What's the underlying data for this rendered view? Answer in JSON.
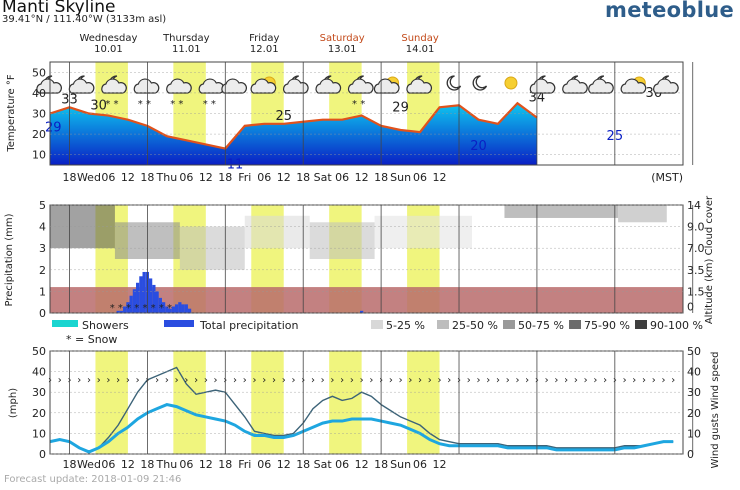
{
  "header": {
    "location": "Manti Skyline",
    "coordinates": "39.41°N / 111.40°W (3133m asl)",
    "brand": "meteoblue"
  },
  "days": [
    {
      "name": "Wednesday",
      "date": "10.01",
      "weekend": false
    },
    {
      "name": "Thursday",
      "date": "11.01",
      "weekend": false
    },
    {
      "name": "Friday",
      "date": "12.01",
      "weekend": false
    },
    {
      "name": "Saturday",
      "date": "13.01",
      "weekend": true
    },
    {
      "name": "Sunday",
      "date": "14.01",
      "weekend": true
    }
  ],
  "time_ticks": [
    "18",
    "Wed",
    "06",
    "12",
    "18",
    "Thu",
    "06",
    "12",
    "18",
    "Fri",
    "06",
    "12",
    "18",
    "Sat",
    "06",
    "12",
    "18",
    "Sun",
    "06",
    "12"
  ],
  "timezone": "(MST)",
  "colors": {
    "daylight": "#f0f57e",
    "temp_line": "#e0521c",
    "temp_fill_top": "#0ec8f0",
    "temp_fill_bottom": "#0a1fc4",
    "precip": "#2a4de0",
    "showers": "#1ad5d0",
    "snow_band": "#b86b6b",
    "wind_gust": "#3c6378",
    "wind_speed": "#1ea6e0"
  },
  "chart_data": [
    {
      "type": "area",
      "ylabel": "Temperature °F",
      "ylim": [
        5,
        55
      ],
      "yticks": [
        10,
        20,
        30,
        40,
        50
      ],
      "x_unit": "hours from Tuesday 18:00 (MST)",
      "x": [
        0,
        6,
        12,
        18,
        24,
        30,
        36,
        42,
        48,
        54,
        60,
        66,
        72,
        78,
        84,
        90,
        96,
        102,
        108,
        114,
        120,
        126,
        132,
        138,
        144,
        150
      ],
      "values": [
        30,
        33,
        30,
        29,
        27,
        24,
        19,
        17,
        15,
        13,
        24,
        25,
        25,
        26,
        27,
        27,
        29,
        24,
        22,
        21,
        33,
        34,
        27,
        25,
        35,
        28
      ],
      "labels": [
        {
          "x": 1,
          "value": "29",
          "kind": "cold"
        },
        {
          "x": 6,
          "value": "33",
          "kind": "warm"
        },
        {
          "x": 15,
          "value": "30",
          "kind": "warm"
        },
        {
          "x": 57,
          "value": "11",
          "kind": "cold"
        },
        {
          "x": 72,
          "value": "25",
          "kind": "warm"
        },
        {
          "x": 108,
          "value": "29",
          "kind": "warm"
        },
        {
          "x": 132,
          "value": "20",
          "kind": "cold"
        },
        {
          "x": 150,
          "value": "34",
          "kind": "warm"
        },
        {
          "x": 174,
          "value": "25",
          "kind": "cold"
        },
        {
          "x": 186,
          "value": "36",
          "kind": "warm"
        }
      ],
      "weather_icons": [
        {
          "x": 0,
          "icon": "cloud-moon-icon"
        },
        {
          "x": 10,
          "icon": "cloud-moon-icon"
        },
        {
          "x": 20,
          "icon": "moon-snow-icon"
        },
        {
          "x": 30,
          "icon": "snow-cloud-icon"
        },
        {
          "x": 40,
          "icon": "snow-cloud-icon"
        },
        {
          "x": 50,
          "icon": "snow-cloud-icon"
        },
        {
          "x": 57,
          "icon": "cloud-icon"
        },
        {
          "x": 66,
          "icon": "partly-cloudy-icon"
        },
        {
          "x": 76,
          "icon": "cloud-moon-icon"
        },
        {
          "x": 86,
          "icon": "cloud-moon-icon"
        },
        {
          "x": 96,
          "icon": "moon-snow-icon"
        },
        {
          "x": 104,
          "icon": "partly-cloudy-icon"
        },
        {
          "x": 114,
          "icon": "cloud-moon-icon"
        },
        {
          "x": 124,
          "icon": "moon-icon"
        },
        {
          "x": 132,
          "icon": "moon-icon"
        },
        {
          "x": 142,
          "icon": "sun-icon"
        },
        {
          "x": 152,
          "icon": "cloud-moon-icon"
        },
        {
          "x": 162,
          "icon": "cloud-moon-icon"
        },
        {
          "x": 170,
          "icon": "cloud-moon-icon"
        },
        {
          "x": 180,
          "icon": "partly-cloudy-icon"
        },
        {
          "x": 190,
          "icon": "cloud-moon-icon"
        }
      ]
    },
    {
      "type": "bar",
      "ylabel": "Precipitation (mm)",
      "ylim": [
        0,
        5
      ],
      "yticks": [
        0,
        1,
        2,
        3,
        4,
        5
      ],
      "y2label": "Altitude (km) Cloud cover",
      "y2ticks": [
        "0",
        "1.5",
        "3.5",
        "7.0",
        "9.0",
        "14"
      ],
      "x": [
        21,
        22,
        23,
        24,
        25,
        26,
        27,
        28,
        29,
        30,
        31,
        32,
        33,
        34,
        35,
        36,
        37,
        38,
        39,
        40,
        41,
        42,
        43,
        96
      ],
      "values": [
        0.1,
        0.1,
        0.3,
        0.5,
        0.8,
        1.1,
        1.4,
        1.7,
        1.9,
        1.9,
        1.6,
        1.3,
        1.0,
        0.7,
        0.5,
        0.3,
        0.2,
        0.3,
        0.4,
        0.5,
        0.4,
        0.4,
        0.2,
        0.1
      ],
      "legend": [
        {
          "label": "Showers",
          "kind": "showers"
        },
        {
          "label": "Total precipitation",
          "kind": "total"
        },
        {
          "label": "* = Snow",
          "kind": "snow"
        }
      ],
      "cloud_cover_legend": [
        "5-25 %",
        "25-50 %",
        "50-75 %",
        "75-90 %",
        "90-100 %"
      ]
    },
    {
      "type": "line",
      "ylabel": "(mph)",
      "ylim": [
        0,
        50
      ],
      "yticks": [
        0,
        10,
        20,
        30,
        40,
        50
      ],
      "y2label": "Wind gusts Wind speed",
      "x": [
        0,
        3,
        6,
        9,
        12,
        15,
        18,
        21,
        24,
        27,
        30,
        33,
        36,
        39,
        42,
        45,
        48,
        51,
        54,
        57,
        60,
        63,
        66,
        69,
        72,
        75,
        78,
        81,
        84,
        87,
        90,
        93,
        96,
        99,
        102,
        105,
        108,
        111,
        114,
        117,
        120,
        123,
        126,
        129,
        132,
        135,
        138,
        141,
        144,
        147,
        150,
        153,
        156,
        159,
        162,
        165,
        168,
        171,
        174,
        177,
        180,
        183,
        186,
        189,
        192
      ],
      "series": [
        {
          "name": "Wind gusts",
          "values": [
            6,
            7,
            6,
            3,
            1,
            3,
            8,
            14,
            22,
            30,
            36,
            38,
            40,
            42,
            34,
            29,
            30,
            31,
            30,
            24,
            18,
            11,
            10,
            9,
            9,
            10,
            15,
            22,
            26,
            28,
            26,
            27,
            30,
            28,
            24,
            21,
            18,
            16,
            14,
            10,
            7,
            6,
            5,
            5,
            5,
            5,
            5,
            4,
            4,
            4,
            4,
            4,
            3,
            3,
            3,
            3,
            3,
            3,
            3,
            4,
            4,
            4,
            5,
            6,
            6
          ]
        },
        {
          "name": "Wind speed",
          "values": [
            6,
            7,
            6,
            3,
            1,
            3,
            6,
            10,
            13,
            17,
            20,
            22,
            24,
            23,
            21,
            19,
            18,
            17,
            16,
            14,
            11,
            9,
            9,
            8,
            8,
            9,
            11,
            13,
            15,
            16,
            16,
            17,
            17,
            17,
            16,
            15,
            14,
            12,
            10,
            7,
            5,
            4,
            4,
            4,
            4,
            4,
            4,
            3,
            3,
            3,
            3,
            3,
            2,
            2,
            2,
            2,
            2,
            2,
            2,
            3,
            3,
            4,
            5,
            6,
            6
          ]
        }
      ]
    }
  ],
  "footer": {
    "text": "Forecast update: 2018-01-09 21:46"
  }
}
